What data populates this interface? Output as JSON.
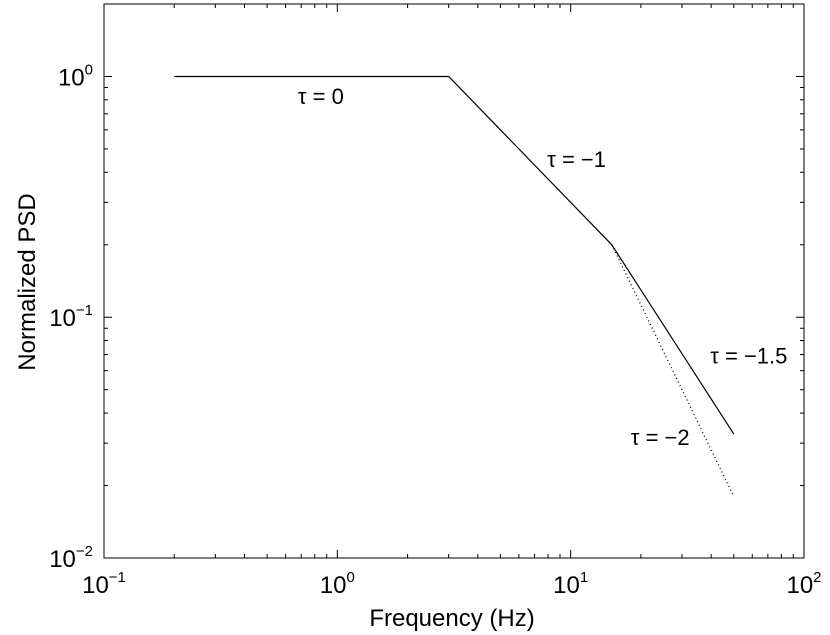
{
  "chart_data": {
    "type": "line",
    "xscale": "log",
    "yscale": "log",
    "xlim": [
      0.1,
      100
    ],
    "ylim": [
      0.01,
      2
    ],
    "xlabel": "Frequency (Hz)",
    "ylabel": "Normalized PSD",
    "grid": false,
    "x_ticks": [
      {
        "value": 0.1,
        "base": "10",
        "exp": "−1"
      },
      {
        "value": 1,
        "base": "10",
        "exp": "0"
      },
      {
        "value": 10,
        "base": "10",
        "exp": "1"
      },
      {
        "value": 100,
        "base": "10",
        "exp": "2"
      }
    ],
    "y_ticks": [
      {
        "value": 0.01,
        "base": "10",
        "exp": "−2"
      },
      {
        "value": 0.1,
        "base": "10",
        "exp": "−1"
      },
      {
        "value": 1,
        "base": "10",
        "exp": "0"
      }
    ],
    "series": [
      {
        "style": "solid",
        "x": [
          0.2,
          3,
          15,
          50
        ],
        "y": [
          1,
          1,
          0.2,
          0.0327
        ]
      },
      {
        "style": "dotted",
        "x": [
          15,
          50
        ],
        "y": [
          0.2,
          0.018
        ]
      }
    ],
    "annotations": [
      {
        "text": "τ = 0",
        "x": 0.85,
        "y": 0.77,
        "anchor": "middle"
      },
      {
        "text": "τ = −1",
        "x": 10.6,
        "y": 0.42,
        "anchor": "middle"
      },
      {
        "text": "τ = −1.5",
        "x": 58,
        "y": 0.0643,
        "anchor": "middle"
      },
      {
        "text": "τ = −2",
        "x": 24.2,
        "y": 0.0294,
        "anchor": "middle"
      }
    ]
  }
}
